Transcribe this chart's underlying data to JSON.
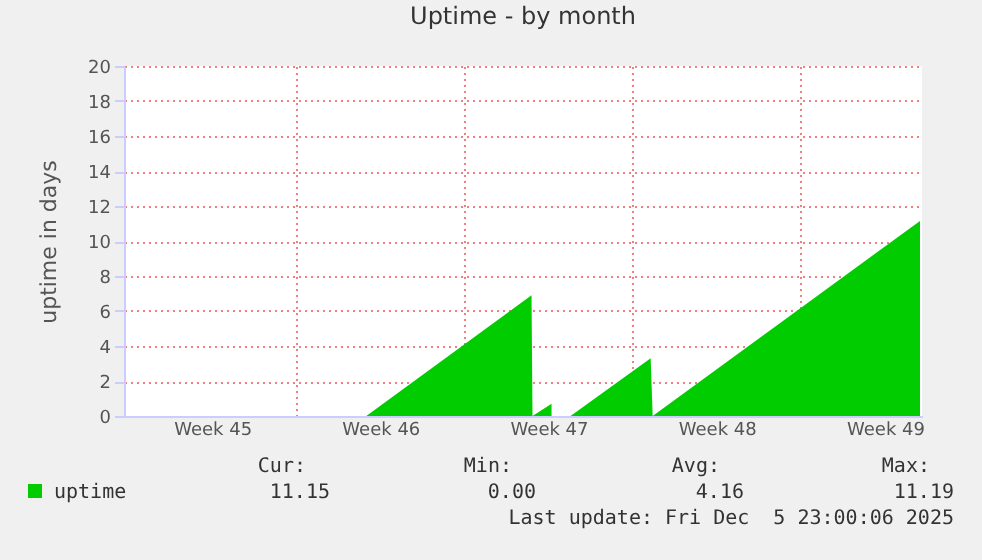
{
  "chart_data": {
    "type": "area",
    "title": "Uptime - by month",
    "ylabel": "uptime in days",
    "x": [
      "2025-11-02T20:00",
      "2025-11-12T22:00",
      "2025-11-19T19:00",
      "2025-11-19T20:00",
      "2025-11-20T15:00",
      "2025-11-20T16:00",
      "2025-11-21T10:00",
      "2025-11-24T18:00",
      "2025-11-24T20:00",
      "2025-12-05T23:00"
    ],
    "series": [
      {
        "name": "uptime",
        "color": "#00cc00",
        "values": [
          0,
          0,
          6.9,
          0,
          0.7,
          null,
          0,
          3.3,
          0,
          11.15
        ]
      }
    ],
    "xlim": [
      "2025-11-02T20:00",
      "2025-12-06T01:00"
    ],
    "xticks": [
      {
        "value": "2025-11-06T12:00",
        "label": "Week 45"
      },
      {
        "value": "2025-11-10T00:00",
        "label": null
      },
      {
        "value": "2025-11-13T12:00",
        "label": "Week 46"
      },
      {
        "value": "2025-11-17T00:00",
        "label": null
      },
      {
        "value": "2025-11-20T12:00",
        "label": "Week 47"
      },
      {
        "value": "2025-11-24T00:00",
        "label": null
      },
      {
        "value": "2025-11-27T12:00",
        "label": "Week 48"
      },
      {
        "value": "2025-12-01T00:00",
        "label": null
      },
      {
        "value": "2025-12-04T12:00",
        "label": "Week 49"
      }
    ],
    "ylim": [
      0,
      20
    ],
    "yticks": [
      0,
      2,
      4,
      6,
      8,
      10,
      12,
      14,
      16,
      18,
      20
    ],
    "grid": true,
    "legend": "bottom",
    "annotations": [
      "Cur:",
      "Min:",
      "Avg:",
      "Max:",
      "11.15",
      "0.00",
      "4.16",
      "11.19",
      "Last update: Fri Dec  5 23:00:06 2025"
    ]
  }
}
